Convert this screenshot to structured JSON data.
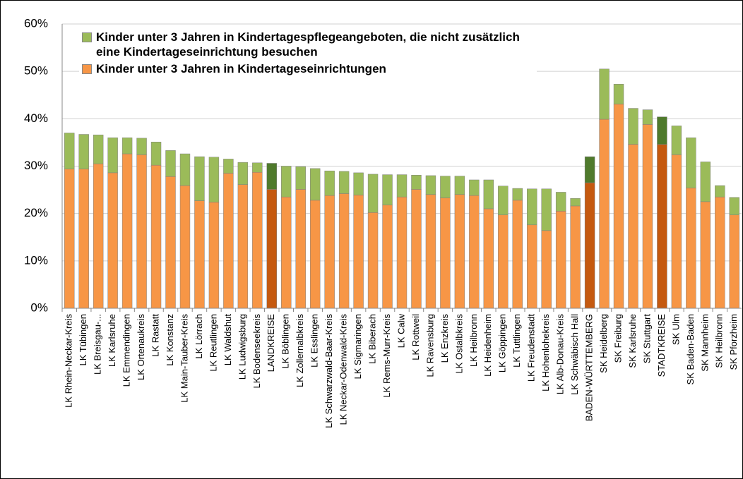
{
  "chart_data": {
    "type": "stacked_bar",
    "categories": [
      "LK Rhein-Neckar-Kreis",
      "LK Tübingen",
      "LK Breisgau-...",
      "LK Karlsruhe",
      "LK Emmendingen",
      "LK Ortenaukreis",
      "LK Rastatt",
      "LK Konstanz",
      "LK Main-Tauber-Kreis",
      "LK Lörrach",
      "LK Reutlingen",
      "LK Waldshut",
      "LK Ludwigsburg",
      "LK Bodenseekreis",
      "LANDKREISE",
      "LK Böblingen",
      "LK Zollernalbkreis",
      "LK Esslingen",
      "LK Schwarzwald-Baar-Kreis",
      "LK Neckar-Odenwald-Kreis",
      "LK Sigmaringen",
      "LK Biberach",
      "LK Rems-Murr-Kreis",
      "LK Calw",
      "LK Rottweil",
      "LK Ravensburg",
      "LK Enzkreis",
      "LK Ostalbkreis",
      "LK Heilbronn",
      "LK Heidenheim",
      "LK Göppingen",
      "LK Tuttlingen",
      "LK Freudenstadt",
      "LK Hohenlohekreis",
      "LK Alb-Donau-Kreis",
      "LK Schwäbisch Hall",
      "BADEN-WÜRTTEMBERG",
      "SK Heidelberg",
      "SK Freiburg",
      "SK Karlsruhe",
      "SK Stuttgart",
      "STADTKREISE",
      "SK Ulm",
      "SK Baden-Baden",
      "SK Mannheim",
      "SK Heilbronn",
      "SK Pforzheim"
    ],
    "series": [
      {
        "name": "Kinder unter 3 Jahren in Kindertageseinrichtungen",
        "color": "#f79646",
        "values": [
          29.4,
          29.4,
          30.5,
          28.6,
          32.6,
          32.4,
          30.2,
          27.8,
          25.9,
          22.7,
          22.4,
          28.5,
          26.1,
          28.7,
          25.1,
          23.5,
          25.1,
          22.8,
          23.8,
          24.2,
          23.9,
          20.2,
          21.8,
          23.5,
          25.1,
          24.0,
          23.3,
          24.0,
          23.8,
          21.0,
          19.7,
          22.8,
          17.6,
          16.4,
          20.5,
          21.6,
          26.5,
          39.9,
          43.1,
          34.6,
          38.8,
          34.6,
          32.4,
          25.4,
          22.5,
          23.5,
          19.7
        ],
        "colors": [
          "#f79646",
          "#f79646",
          "#f79646",
          "#f79646",
          "#f79646",
          "#f79646",
          "#f79646",
          "#f79646",
          "#f79646",
          "#f79646",
          "#f79646",
          "#f79646",
          "#f79646",
          "#f79646",
          "#c5590f",
          "#f79646",
          "#f79646",
          "#f79646",
          "#f79646",
          "#f79646",
          "#f79646",
          "#f79646",
          "#f79646",
          "#f79646",
          "#f79646",
          "#f79646",
          "#f79646",
          "#f79646",
          "#f79646",
          "#f79646",
          "#f79646",
          "#f79646",
          "#f79646",
          "#f79646",
          "#f79646",
          "#f79646",
          "#c5590f",
          "#f79646",
          "#f79646",
          "#f79646",
          "#f79646",
          "#c5590f",
          "#f79646",
          "#f79646",
          "#f79646",
          "#f79646",
          "#f79646"
        ]
      },
      {
        "name": "Kinder unter 3 Jahren in Kindertagespflegeangeboten, die nicht zusätzlich eine Kindertageseinrichtung besuchen",
        "color": "#9bbb59",
        "values": [
          7.6,
          7.3,
          6.1,
          7.4,
          3.4,
          3.5,
          4.9,
          5.5,
          6.7,
          9.3,
          9.5,
          3.0,
          4.7,
          2.0,
          5.5,
          6.5,
          4.8,
          6.7,
          5.2,
          4.7,
          4.7,
          8.1,
          6.4,
          4.7,
          3.0,
          4.0,
          4.6,
          3.9,
          3.3,
          6.1,
          6.1,
          2.5,
          7.6,
          8.8,
          4.0,
          1.6,
          5.5,
          10.6,
          4.2,
          7.6,
          3.1,
          5.8,
          6.1,
          10.6,
          8.4,
          2.4,
          3.7
        ],
        "colors": [
          "#9bbb59",
          "#9bbb59",
          "#9bbb59",
          "#9bbb59",
          "#9bbb59",
          "#9bbb59",
          "#9bbb59",
          "#9bbb59",
          "#9bbb59",
          "#9bbb59",
          "#9bbb59",
          "#9bbb59",
          "#9bbb59",
          "#9bbb59",
          "#4f7a2c",
          "#9bbb59",
          "#9bbb59",
          "#9bbb59",
          "#9bbb59",
          "#9bbb59",
          "#9bbb59",
          "#9bbb59",
          "#9bbb59",
          "#9bbb59",
          "#9bbb59",
          "#9bbb59",
          "#9bbb59",
          "#9bbb59",
          "#9bbb59",
          "#9bbb59",
          "#9bbb59",
          "#9bbb59",
          "#9bbb59",
          "#9bbb59",
          "#9bbb59",
          "#9bbb59",
          "#4f7a2c",
          "#9bbb59",
          "#9bbb59",
          "#9bbb59",
          "#9bbb59",
          "#4f7a2c",
          "#9bbb59",
          "#9bbb59",
          "#9bbb59",
          "#9bbb59",
          "#9bbb59"
        ]
      }
    ],
    "ylim": [
      0,
      60
    ],
    "yticks": [
      {
        "value": 0,
        "label": "0%"
      },
      {
        "value": 10,
        "label": "10%"
      },
      {
        "value": 20,
        "label": "20%"
      },
      {
        "value": 30,
        "label": "30%"
      },
      {
        "value": 40,
        "label": "40%"
      },
      {
        "value": 50,
        "label": "50%"
      },
      {
        "value": 60,
        "label": "60%"
      }
    ],
    "grid": true,
    "legend": "top-left"
  }
}
